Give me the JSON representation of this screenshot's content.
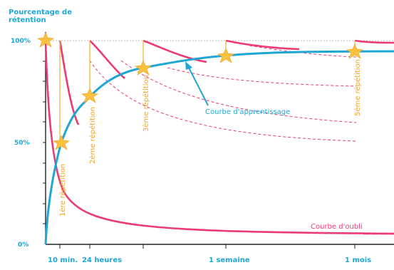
{
  "y_title_line1": "Pourcentage de",
  "y_title_line2": "rétention",
  "y_ticks": [
    "100%",
    "50%",
    "0%"
  ],
  "x_ticks": [
    "10 min.",
    "24 heures",
    "1 semaine",
    "1 mois"
  ],
  "repetitions": [
    "1ère répétition",
    "2ème répétition",
    "3ème répétition",
    "5ème répétition"
  ],
  "label_learning": "Courbe d'apprentissage",
  "label_forgetting": "Courbe d'oubli",
  "colors": {
    "forgetting": "#ec3a73",
    "learning": "#1da7d2",
    "star": "#f8c23e",
    "axis": "#222222",
    "text_orange": "#f0a52c"
  }
}
